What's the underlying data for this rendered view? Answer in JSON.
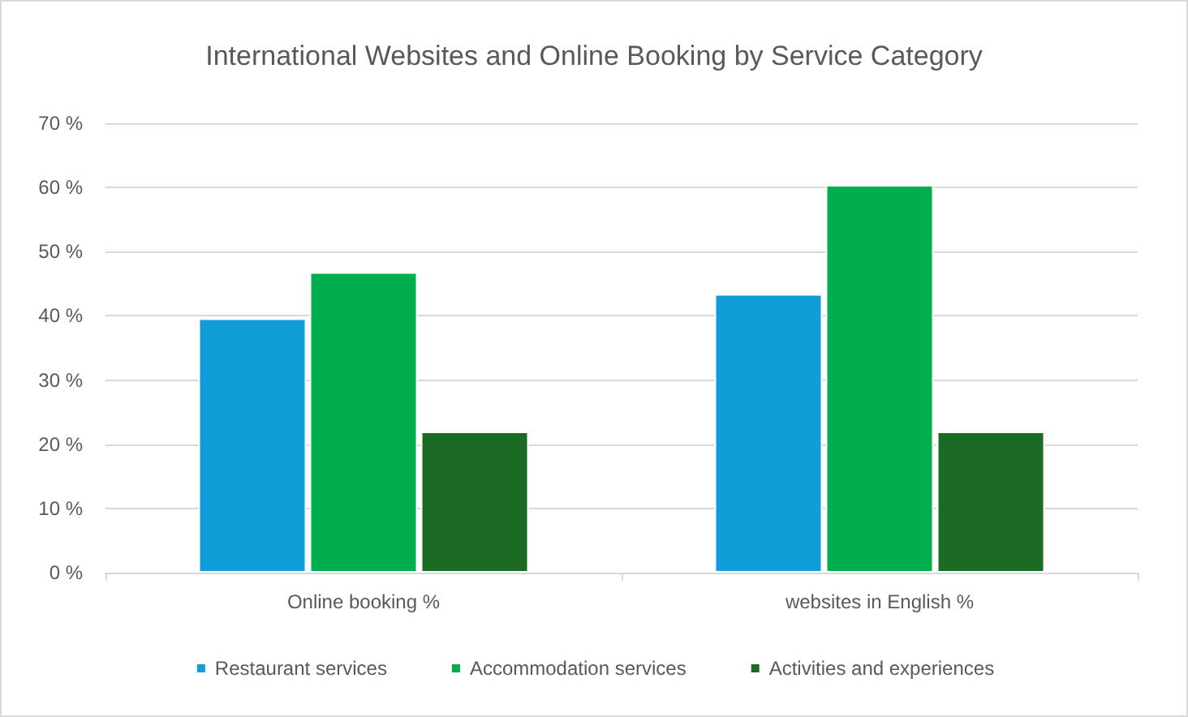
{
  "chart_data": {
    "type": "bar",
    "title": "International Websites and Online Booking by Service Category",
    "categories": [
      "Online booking %",
      "websites in English %"
    ],
    "series": [
      {
        "name": "Restaurant services",
        "color": "#109dd8",
        "values": [
          39.6,
          43.4
        ]
      },
      {
        "name": "Accommodation services",
        "color": "#00ae4f",
        "values": [
          46.8,
          60.4
        ]
      },
      {
        "name": "Activities and experiences",
        "color": "#1b6b24",
        "values": [
          22,
          22
        ]
      }
    ],
    "ylim": [
      0,
      70
    ],
    "yticks": [
      {
        "value": 0,
        "label": "0 %"
      },
      {
        "value": 10,
        "label": "10 %"
      },
      {
        "value": 20,
        "label": "20 %"
      },
      {
        "value": 30,
        "label": "30 %"
      },
      {
        "value": 40,
        "label": "40 %"
      },
      {
        "value": 50,
        "label": "50 %"
      },
      {
        "value": 60,
        "label": "60 %"
      },
      {
        "value": 70,
        "label": "70 %"
      }
    ],
    "grid": "y",
    "legend": "bottom"
  }
}
